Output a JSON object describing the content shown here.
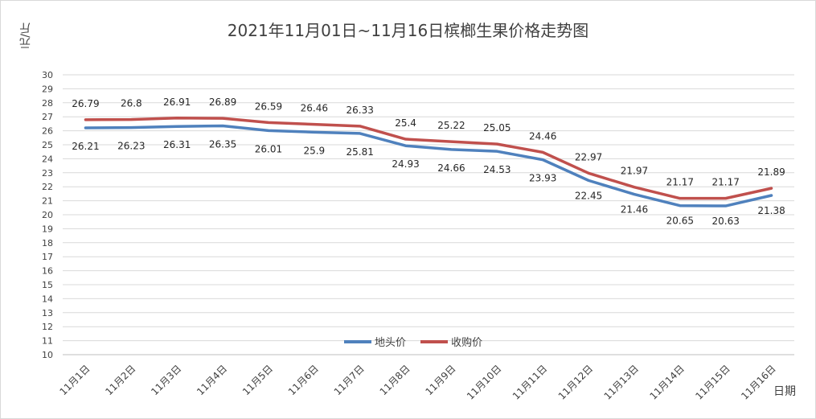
{
  "chart_data": {
    "type": "line",
    "title": "2021年11月01日~11月16日槟榔生果价格走势图",
    "ylabel": "元/斤",
    "xlabel": "日期",
    "ylim": [
      10,
      30
    ],
    "yticks": [
      "10",
      "11",
      "12",
      "13",
      "14",
      "15",
      "16",
      "17",
      "18",
      "19",
      "20",
      "21",
      "22",
      "23",
      "24",
      "25",
      "26",
      "27",
      "28",
      "29",
      "30"
    ],
    "grid": true,
    "legend_position": "bottom-center",
    "categories": [
      "11月1日",
      "11月2日",
      "11月3日",
      "11月4日",
      "11月5日",
      "11月6日",
      "11月7日",
      "11月8日",
      "11月9日",
      "11月10日",
      "11月11日",
      "11月12日",
      "11月13日",
      "11月14日",
      "11月15日",
      "11月16日"
    ],
    "series": [
      {
        "name": "地头价",
        "color": "#4f81bd",
        "values": [
          26.21,
          26.23,
          26.31,
          26.35,
          26.01,
          25.9,
          25.81,
          24.93,
          24.66,
          24.53,
          23.93,
          22.45,
          21.46,
          20.65,
          20.63,
          21.38
        ],
        "labels": [
          "26.21",
          "26.23",
          "26.31",
          "26.35",
          "26.01",
          "25.9",
          "25.81",
          "24.93",
          "24.66",
          "24.53",
          "23.93",
          "22.45",
          "21.46",
          "20.65",
          "20.63",
          "21.38"
        ]
      },
      {
        "name": "收购价",
        "color": "#c0504d",
        "values": [
          26.79,
          26.8,
          26.91,
          26.89,
          26.59,
          26.46,
          26.33,
          25.4,
          25.22,
          25.05,
          24.46,
          22.97,
          21.97,
          21.17,
          21.17,
          21.89
        ],
        "labels": [
          "26.79",
          "26.8",
          "26.91",
          "26.89",
          "26.59",
          "26.46",
          "26.33",
          "25.4",
          "25.22",
          "25.05",
          "24.46",
          "22.97",
          "21.97",
          "21.17",
          "21.17",
          "21.89"
        ]
      }
    ]
  }
}
